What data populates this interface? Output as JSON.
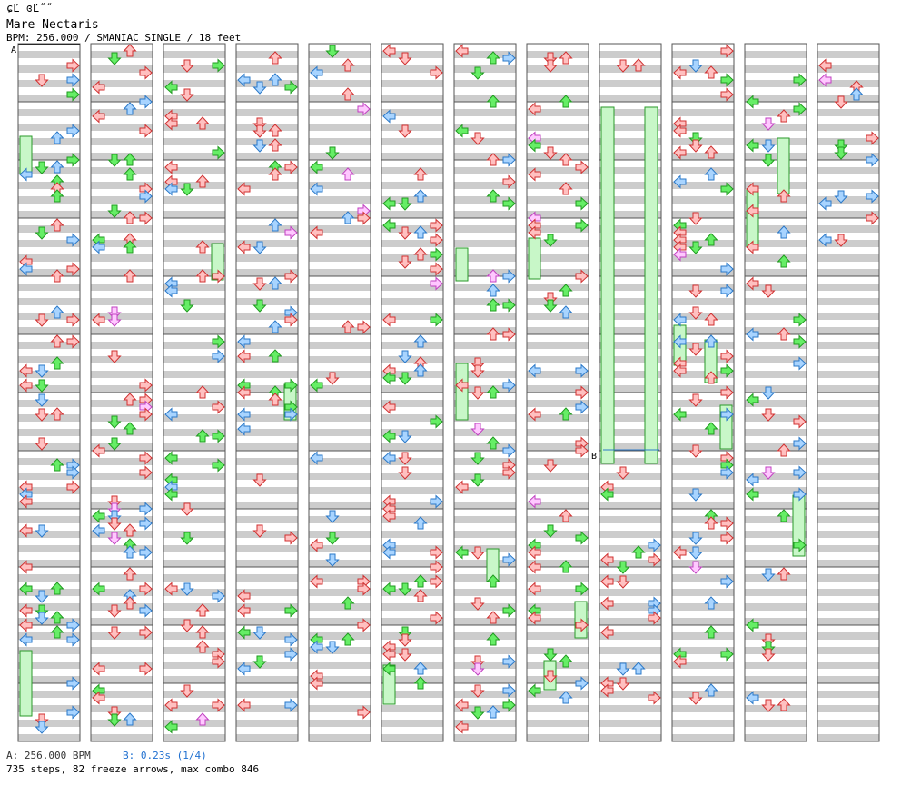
{
  "header": {
    "glyph": "ɕĽ ɞĽ˝˝",
    "title": "Mare Nectaris",
    "info": "BPM: 256.000 / SMANIAC SINGLE / 18 feet"
  },
  "markers": {
    "start": "A",
    "stop": "B"
  },
  "footer": {
    "bpm_line": "A: 256.000 BPM",
    "stop_line": "B: 0.23s (1/4)",
    "stats": "735 steps, 82 freeze arrows, max combo 846"
  },
  "colors": {
    "red": "#ffc0c0",
    "red_stroke": "#d03030",
    "blue": "#a8d4ff",
    "blue_stroke": "#2a78c8",
    "green": "#66ee66",
    "green_stroke": "#1f9a1f",
    "pink": "#ffc8ff",
    "pink_stroke": "#c040c0",
    "freeze_fill": "#c8f7c8",
    "freeze_stroke": "#2a9a2a",
    "band": "#cccccc"
  },
  "steps": [
    {
      "arrows": [
        "down"
      ],
      "count": 3
    },
    {
      "arrows": [
        "left",
        "right"
      ],
      "count": 2
    }
  ]
}
